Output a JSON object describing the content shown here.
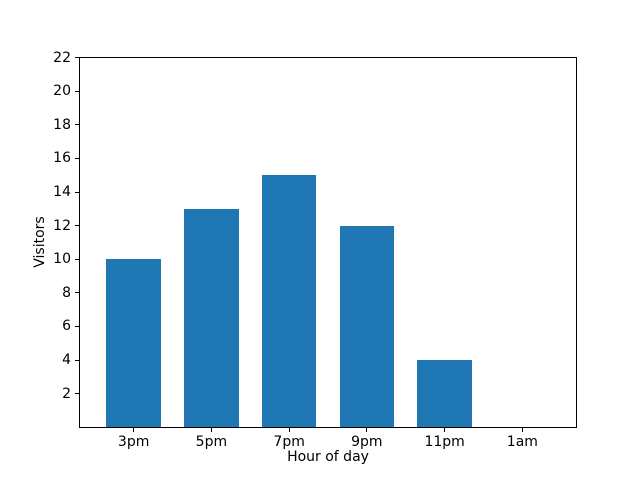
{
  "figure": {
    "background": "#ffffff"
  },
  "chart_data": {
    "type": "bar",
    "title": "",
    "xlabel": "Hour of day",
    "ylabel": "Visitors",
    "categories": [
      "3pm",
      "5pm",
      "7pm",
      "9pm",
      "11pm",
      "1am"
    ],
    "values": [
      10,
      13,
      15,
      12,
      4,
      0
    ],
    "yticks": [
      2,
      4,
      6,
      8,
      10,
      12,
      14,
      16,
      18,
      20,
      22
    ],
    "ylim": [
      0,
      22
    ],
    "xlim": [
      -0.69,
      5.69
    ],
    "bar_width": 0.7,
    "bar_color": "#1f77b4",
    "axis_color": "#000000",
    "text_color": "#000000",
    "grid": false,
    "legend_position": "none"
  }
}
